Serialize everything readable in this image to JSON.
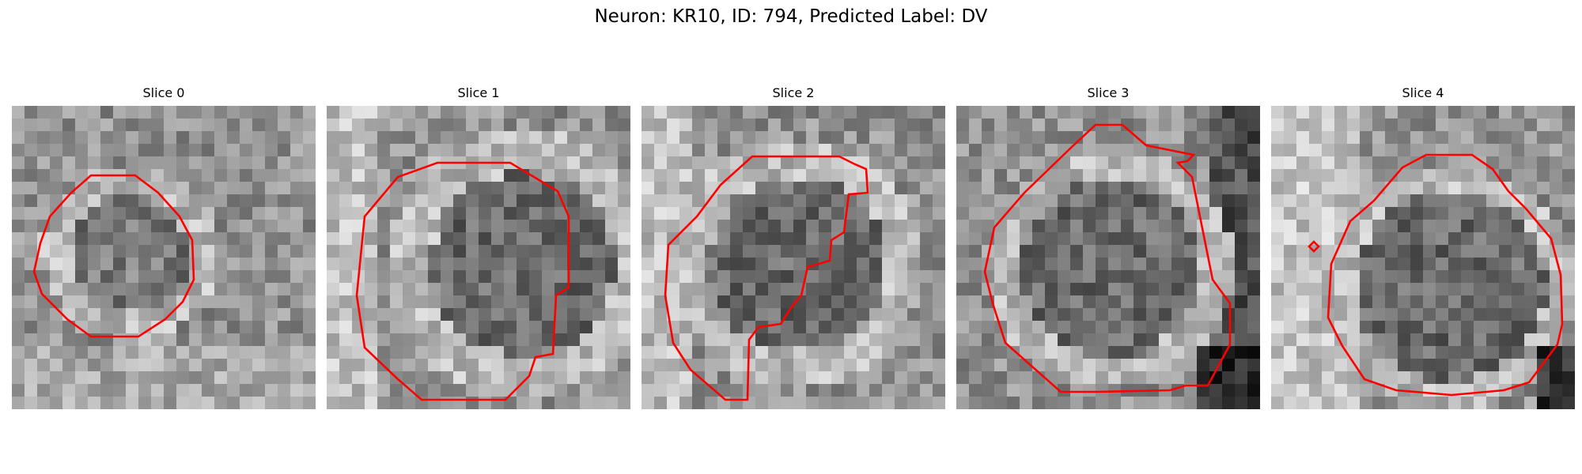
{
  "figure": {
    "title": "Neuron: KR10, ID: 794, Predicted Label: DV",
    "contour_color": "#ff0000",
    "background_color": "#ffffff"
  },
  "panels": [
    {
      "title": "Slice 0"
    },
    {
      "title": "Slice 1"
    },
    {
      "title": "Slice 2"
    },
    {
      "title": "Slice 3"
    },
    {
      "title": "Slice 4"
    }
  ]
}
